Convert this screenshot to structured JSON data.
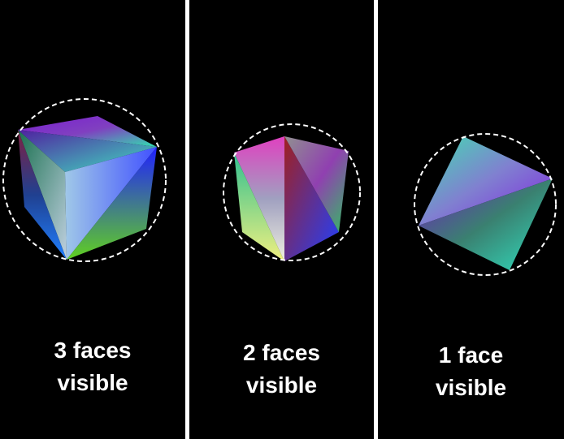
{
  "panels": [
    {
      "caption_line1": "3 faces",
      "caption_line2": "visible"
    },
    {
      "caption_line1": "2 faces",
      "caption_line2": "visible"
    },
    {
      "caption_line1": "1 face",
      "caption_line2": "visible"
    }
  ]
}
